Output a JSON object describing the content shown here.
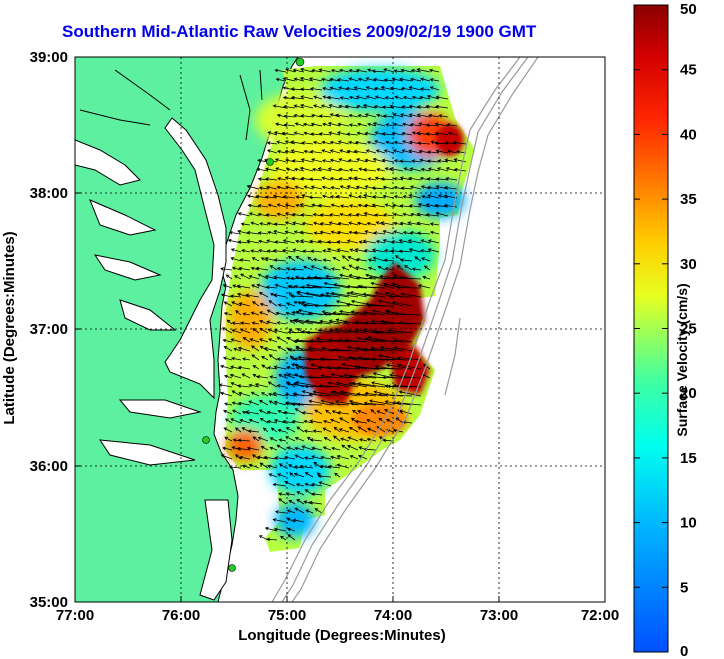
{
  "title": "Southern Mid-Atlantic Raw Velocities 2009/02/19 1900 GMT",
  "x_axis": {
    "label": "Longitude (Degrees:Minutes)",
    "ticks": [
      "77:00",
      "76:00",
      "75:00",
      "74:00",
      "73:00",
      "72:00"
    ]
  },
  "y_axis": {
    "label": "Latitude (Degrees:Minutes)",
    "ticks": [
      "39:00",
      "38:00",
      "37:00",
      "36:00",
      "35:00"
    ]
  },
  "colorbar": {
    "label": "Surface Velocity (cm/s)",
    "ticks": [
      "50",
      "45",
      "40",
      "35",
      "30",
      "25",
      "20",
      "15",
      "10",
      "5",
      "0"
    ],
    "range": [
      0,
      50
    ],
    "colormap": "jet"
  },
  "colors": {
    "land": "#5cf0a0",
    "coastline": "#000000",
    "bathymetry": "#9a9a9a",
    "station": "#22cc22",
    "arrows": "#000000",
    "grid": "#000000"
  },
  "grid": "dotted",
  "chart_data": {
    "type": "heatmap",
    "title": "Southern Mid-Atlantic Raw Velocities 2009/02/19 1900 GMT",
    "xlabel": "Longitude (Degrees:Minutes)",
    "ylabel": "Latitude (Degrees:Minutes)",
    "xlim": [
      "77:00",
      "72:00"
    ],
    "ylim": [
      "35:00",
      "39:00"
    ],
    "color_variable": "Surface Velocity (cm/s)",
    "color_range": [
      0,
      50
    ],
    "high_speed_regions": [
      {
        "lon": "74:20",
        "lat": "37:10",
        "speed_cm_s": 50
      },
      {
        "lon": "74:40",
        "lat": "36:45",
        "speed_cm_s": 50
      },
      {
        "lon": "73:50",
        "lat": "36:48",
        "speed_cm_s": 45
      },
      {
        "lon": "73:25",
        "lat": "38:25",
        "speed_cm_s": 42
      }
    ],
    "low_speed_regions": [
      {
        "lon": "74:30",
        "lat": "38:45",
        "speed_cm_s": 10
      },
      {
        "lon": "74:45",
        "lat": "36:45",
        "speed_cm_s": 10
      },
      {
        "lon": "74:50",
        "lat": "35:35",
        "speed_cm_s": 8
      }
    ],
    "stations": [
      {
        "lon": "74:55",
        "lat": "39:00"
      },
      {
        "lon": "75:08",
        "lat": "38:14"
      },
      {
        "lon": "75:42",
        "lat": "36:12"
      },
      {
        "lon": "75:30",
        "lat": "35:16"
      }
    ]
  }
}
